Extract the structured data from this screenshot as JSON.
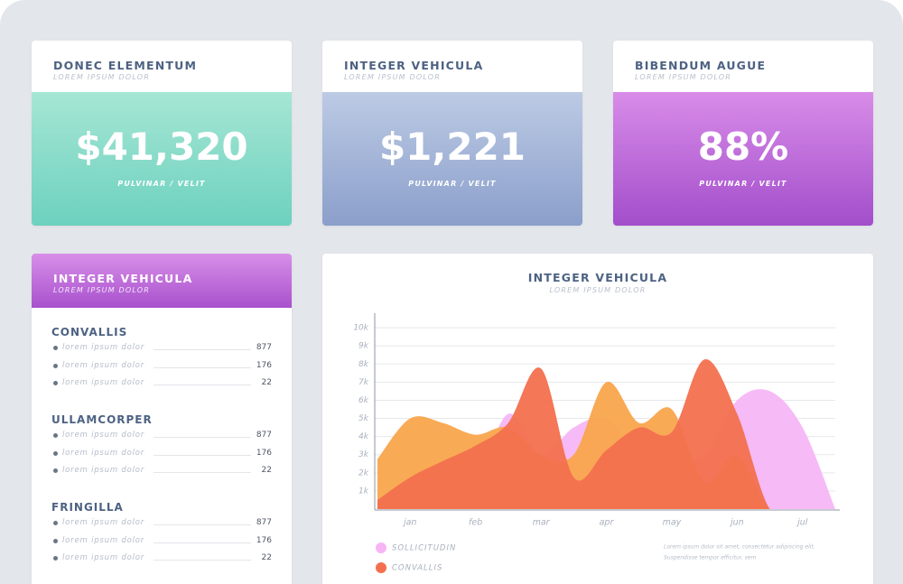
{
  "cards": [
    {
      "title": "DONEC ELEMENTUM",
      "subtitle": "LOREM IPSUM DOLOR",
      "value": "$41,320",
      "caption": "PULVINAR / VELIT"
    },
    {
      "title": "INTEGER VEHICULA",
      "subtitle": "LOREM IPSUM DOLOR",
      "value": "$1,221",
      "caption": "PULVINAR / VELIT"
    },
    {
      "title": "BIBENDUM AUGUE",
      "subtitle": "LOREM IPSUM DOLOR",
      "value": "88%",
      "caption": "PULVINAR / VELIT"
    }
  ],
  "list": {
    "title": "INTEGER VEHICULA",
    "subtitle": "LOREM IPSUM DOLOR",
    "groups": [
      {
        "title": "CONVALLIS",
        "rows": [
          {
            "label": "lorem ipsum dolor",
            "value": 877
          },
          {
            "label": "lorem ipsum dolor",
            "value": 176
          },
          {
            "label": "lorem ipsum dolor",
            "value": 22
          }
        ]
      },
      {
        "title": "ULLAMCORPER",
        "rows": [
          {
            "label": "lorem ipsum dolor",
            "value": 877
          },
          {
            "label": "lorem ipsum dolor",
            "value": 176
          },
          {
            "label": "lorem ipsum dolor",
            "value": 22
          }
        ]
      },
      {
        "title": "FRINGILLA",
        "rows": [
          {
            "label": "lorem ipsum dolor",
            "value": 877
          },
          {
            "label": "lorem ipsum dolor",
            "value": 176
          },
          {
            "label": "lorem ipsum dolor",
            "value": 22
          }
        ]
      }
    ]
  },
  "chart_data": {
    "type": "area",
    "title": "INTEGER VEHICULA",
    "subtitle": "LOREM IPSUM DOLOR",
    "note": [
      "Lorem ipsum dolor sit amet, consectetur adipiscing elit.",
      "Suspendisse tempor efficitur, sem"
    ],
    "categories": [
      null,
      "jan",
      null,
      "feb",
      null,
      "mar",
      null,
      "apr",
      null,
      "may",
      null,
      "jun",
      null,
      "jul",
      null
    ],
    "ylim": [
      0,
      11000
    ],
    "yticks": [
      {
        "value": 1000,
        "label": "1k"
      },
      {
        "value": 2000,
        "label": "2k"
      },
      {
        "value": 3000,
        "label": "3k"
      },
      {
        "value": 4000,
        "label": "4k"
      },
      {
        "value": 5000,
        "label": "5k"
      },
      {
        "value": 6000,
        "label": "6k"
      },
      {
        "value": 7000,
        "label": "7k"
      },
      {
        "value": 8000,
        "label": "8k"
      },
      {
        "value": 9000,
        "label": "9k"
      },
      {
        "value": 10000,
        "label": "10k"
      }
    ],
    "grid": true,
    "series": [
      {
        "name": "SOLLICITUDIN",
        "color": "#f6b6f6",
        "values": [
          0,
          0,
          0,
          1500,
          5250,
          3000,
          4500,
          5000,
          3000,
          3000,
          3000,
          6000,
          6500,
          4500,
          0
        ]
      },
      {
        "color": "#f9a54c",
        "values": [
          2750,
          5000,
          4750,
          4100,
          4500,
          3000,
          3000,
          7000,
          4750,
          5500,
          1500,
          3000,
          0,
          0,
          0
        ]
      },
      {
        "name": "CONVALLIS",
        "color": "#f3704f",
        "values": [
          500,
          1750,
          2650,
          3500,
          4750,
          7750,
          1750,
          3250,
          4500,
          4250,
          8250,
          5250,
          0,
          0,
          0
        ]
      }
    ]
  }
}
